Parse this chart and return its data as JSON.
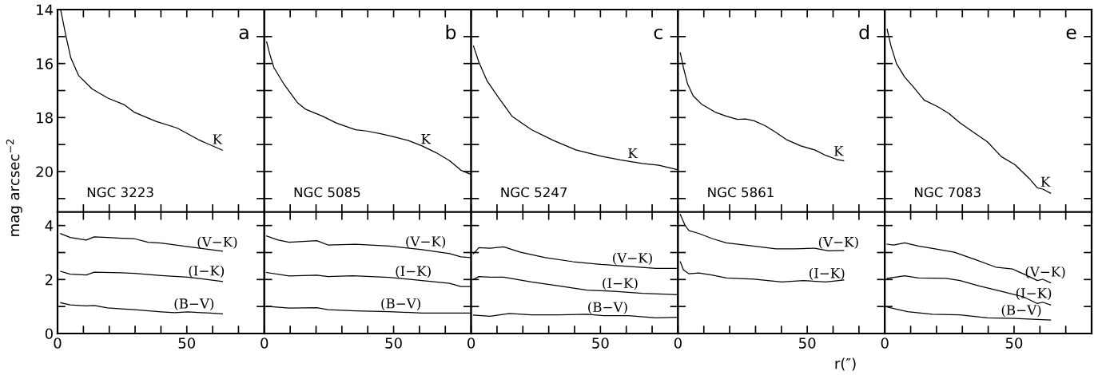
{
  "chart_data": [
    {
      "type": "line",
      "ylabel": "mag arcsec$^{−2}$",
      "xlim": [
        0,
        80
      ],
      "ylim": [
        21.5,
        14
      ],
      "xticks": [
        0,
        {
          "value": 10,
          "label": null
        },
        {
          "value": 20,
          "label": null
        },
        {
          "value": 30,
          "label": null
        },
        {
          "value": 40,
          "label": null
        },
        50,
        {
          "value": 60,
          "label": null
        },
        {
          "value": 70,
          "label": null
        }
      ],
      "yticks": [
        14,
        {
          "value": 15,
          "label": null
        },
        16,
        {
          "value": 17,
          "label": null
        },
        18,
        {
          "value": 19,
          "label": null
        },
        20,
        {
          "value": 21,
          "label": null
        }
      ],
      "tick_labels": "y",
      "grid": false,
      "annotations": [
        "a",
        "NGC 3223"
      ],
      "series": [
        {
          "name": "K",
          "color": "#000000",
          "x": [
            1.2,
            3.1,
            5.1,
            8.2,
            13.4,
            19.5,
            25.7,
            29.8,
            38.1,
            46.3,
            54.5,
            63.8
          ],
          "values": [
            14.0,
            14.91,
            15.78,
            16.45,
            16.94,
            17.28,
            17.52,
            17.81,
            18.14,
            18.39,
            18.82,
            19.21
          ]
        }
      ]
    },
    {
      "type": "line",
      "xlim": [
        0,
        80
      ],
      "ylim": [
        21.5,
        14
      ],
      "xticks": [
        0,
        {
          "value": 10,
          "label": null
        },
        {
          "value": 20,
          "label": null
        },
        {
          "value": 30,
          "label": null
        },
        {
          "value": 40,
          "label": null
        },
        50,
        {
          "value": 60,
          "label": null
        },
        {
          "value": 70,
          "label": null
        }
      ],
      "yticks": [
        14,
        {
          "value": 15,
          "label": null
        },
        16,
        {
          "value": 17,
          "label": null
        },
        18,
        {
          "value": 19,
          "label": null
        },
        20,
        {
          "value": 21,
          "label": null
        }
      ],
      "tick_labels": false,
      "grid": false,
      "annotations": [
        "b",
        "NGC 5085"
      ],
      "series": [
        {
          "name": "K",
          "color": "#000000",
          "x": [
            0.9,
            2.1,
            3.7,
            7.5,
            12.8,
            16.1,
            22.5,
            27.8,
            35.3,
            39.6,
            45.0,
            50.3,
            55.7,
            61.0,
            66.4,
            71.7,
            76.0,
            79.8
          ],
          "values": [
            15.2,
            15.65,
            16.15,
            16.75,
            17.45,
            17.7,
            17.95,
            18.2,
            18.45,
            18.5,
            18.6,
            18.72,
            18.85,
            19.05,
            19.3,
            19.6,
            19.95,
            20.1
          ]
        }
      ]
    },
    {
      "type": "line",
      "xlim": [
        0,
        80
      ],
      "ylim": [
        21.5,
        14
      ],
      "xticks": [
        0,
        {
          "value": 10,
          "label": null
        },
        {
          "value": 20,
          "label": null
        },
        {
          "value": 30,
          "label": null
        },
        {
          "value": 40,
          "label": null
        },
        50,
        {
          "value": 60,
          "label": null
        },
        {
          "value": 70,
          "label": null
        }
      ],
      "yticks": [
        14,
        {
          "value": 15,
          "label": null
        },
        16,
        {
          "value": 17,
          "label": null
        },
        18,
        {
          "value": 19,
          "label": null
        },
        20,
        {
          "value": 21,
          "label": null
        }
      ],
      "tick_labels": false,
      "grid": false,
      "annotations": [
        "c",
        "NGC 5247"
      ],
      "series": [
        {
          "name": "K",
          "color": "#000000",
          "x": [
            0.9,
            3.0,
            6.2,
            10.5,
            15.8,
            23.3,
            31.9,
            40.5,
            50.1,
            57.6,
            66.2,
            72.6,
            79.9
          ],
          "values": [
            15.35,
            15.95,
            16.65,
            17.25,
            17.95,
            18.45,
            18.85,
            19.2,
            19.43,
            19.57,
            19.7,
            19.77,
            19.93
          ]
        }
      ]
    },
    {
      "type": "line",
      "xlim": [
        0,
        80
      ],
      "ylim": [
        21.5,
        14
      ],
      "xticks": [
        0,
        {
          "value": 10,
          "label": null
        },
        {
          "value": 20,
          "label": null
        },
        {
          "value": 30,
          "label": null
        },
        {
          "value": 40,
          "label": null
        },
        50,
        {
          "value": 60,
          "label": null
        },
        {
          "value": 70,
          "label": null
        }
      ],
      "yticks": [
        14,
        {
          "value": 15,
          "label": null
        },
        16,
        {
          "value": 17,
          "label": null
        },
        18,
        {
          "value": 19,
          "label": null
        },
        20,
        {
          "value": 21,
          "label": null
        }
      ],
      "tick_labels": false,
      "grid": false,
      "annotations": [
        "d",
        "NGC 5861"
      ],
      "series": [
        {
          "name": "K",
          "color": "#000000",
          "x": [
            0.9,
            2.1,
            3.7,
            5.9,
            9.1,
            14.4,
            18.7,
            23.0,
            26.2,
            29.4,
            33.7,
            37.9,
            42.2,
            47.5,
            52.9,
            57.1,
            61.4,
            64.1
          ],
          "values": [
            15.6,
            16.15,
            16.75,
            17.2,
            17.5,
            17.8,
            17.95,
            18.07,
            18.05,
            18.12,
            18.3,
            18.55,
            18.83,
            19.05,
            19.2,
            19.4,
            19.55,
            19.6
          ]
        }
      ]
    },
    {
      "type": "line",
      "xlim": [
        0,
        80
      ],
      "ylim": [
        21.5,
        14
      ],
      "xticks": [
        0,
        {
          "value": 10,
          "label": null
        },
        {
          "value": 20,
          "label": null
        },
        {
          "value": 30,
          "label": null
        },
        {
          "value": 40,
          "label": null
        },
        50,
        {
          "value": 60,
          "label": null
        },
        {
          "value": 70,
          "label": null
        }
      ],
      "yticks": [
        14,
        {
          "value": 15,
          "label": null
        },
        16,
        {
          "value": 17,
          "label": null
        },
        18,
        {
          "value": 19,
          "label": null
        },
        20,
        {
          "value": 21,
          "label": null
        }
      ],
      "tick_labels": false,
      "grid": false,
      "annotations": [
        "e",
        "NGC 7083"
      ],
      "series": [
        {
          "name": "K",
          "color": "#000000",
          "x": [
            0.9,
            2.4,
            4.5,
            7.7,
            10.9,
            15.2,
            20.5,
            24.8,
            29.1,
            34.4,
            39.7,
            45.1,
            50.4,
            55.8,
            59.0,
            61.1,
            64.1
          ],
          "values": [
            14.73,
            15.35,
            16.0,
            16.5,
            16.85,
            17.35,
            17.6,
            17.85,
            18.2,
            18.55,
            18.9,
            19.45,
            19.75,
            20.25,
            20.6,
            20.65,
            20.8
          ]
        }
      ]
    },
    {
      "type": "line",
      "xlim": [
        0,
        80
      ],
      "ylim": [
        0,
        4.5
      ],
      "xticks": [
        0,
        {
          "value": 10,
          "label": null
        },
        {
          "value": 20,
          "label": null
        },
        {
          "value": 30,
          "label": null
        },
        {
          "value": 40,
          "label": null
        },
        50,
        {
          "value": 60,
          "label": null
        },
        {
          "value": 70,
          "label": null
        }
      ],
      "yticks": [
        0,
        {
          "value": 1,
          "label": null
        },
        2,
        {
          "value": 3,
          "label": null
        },
        4
      ],
      "grid": false,
      "series": [
        {
          "name": "(V−K)",
          "color": "#000000",
          "x": [
            1.2,
            4.9,
            11.1,
            14.2,
            19.3,
            24.7,
            29.8,
            35,
            40.1,
            50.4,
            63.8
          ],
          "values": [
            3.7,
            3.56,
            3.46,
            3.58,
            3.56,
            3.53,
            3.51,
            3.38,
            3.35,
            3.22,
            3.05
          ]
        },
        {
          "name": "(I−K)",
          "color": "#000000",
          "x": [
            1.2,
            4.9,
            11.1,
            14.2,
            24.7,
            29.8,
            40.1,
            50.4,
            63.8
          ],
          "values": [
            2.3,
            2.2,
            2.17,
            2.27,
            2.25,
            2.23,
            2.15,
            2.09,
            1.93
          ]
        },
        {
          "name": "(B−V)",
          "color": "#000000",
          "x": [
            1.2,
            4.9,
            11.1,
            14.2,
            19.3,
            24.7,
            29.8,
            40.1,
            45.3,
            50.4,
            63.8
          ],
          "values": [
            1.14,
            1.06,
            1.02,
            1.04,
            0.95,
            0.91,
            0.88,
            0.8,
            0.77,
            0.8,
            0.73
          ]
        }
      ]
    },
    {
      "type": "line",
      "xlim": [
        0,
        80
      ],
      "ylim": [
        0,
        4.5
      ],
      "xticks": [
        0,
        {
          "value": 10,
          "label": null
        },
        {
          "value": 20,
          "label": null
        },
        {
          "value": 30,
          "label": null
        },
        {
          "value": 40,
          "label": null
        },
        50,
        {
          "value": 60,
          "label": null
        },
        {
          "value": 70,
          "label": null
        }
      ],
      "yticks": [
        0,
        {
          "value": 1,
          "label": null
        },
        2,
        {
          "value": 3,
          "label": null
        },
        4
      ],
      "tick_labels": "x",
      "grid": false,
      "series": [
        {
          "name": "(V−K)",
          "color": "#000000",
          "x": [
            0.9,
            5.4,
            9.6,
            20.3,
            24.6,
            35.3,
            48.2,
            61.0,
            71.7,
            76.0,
            79.8
          ],
          "values": [
            3.61,
            3.46,
            3.38,
            3.44,
            3.28,
            3.31,
            3.24,
            3.11,
            2.96,
            2.84,
            2.81
          ]
        },
        {
          "name": "(I−K)",
          "color": "#000000",
          "x": [
            0.9,
            9.6,
            20.3,
            24.6,
            34.3,
            48.2,
            61.0,
            71.7,
            76.0,
            79.8
          ],
          "values": [
            2.26,
            2.13,
            2.16,
            2.11,
            2.14,
            2.08,
            1.96,
            1.86,
            1.74,
            1.74
          ]
        },
        {
          "name": "(B−V)",
          "color": "#000000",
          "x": [
            0.9,
            9.6,
            20.3,
            24.6,
            35.3,
            48.2,
            61.0,
            79.8
          ],
          "values": [
            1.01,
            0.94,
            0.96,
            0.88,
            0.84,
            0.81,
            0.76,
            0.76
          ]
        }
      ]
    },
    {
      "type": "line",
      "xlim": [
        0,
        80
      ],
      "ylim": [
        0,
        4.5
      ],
      "xticks": [
        0,
        {
          "value": 10,
          "label": null
        },
        {
          "value": 20,
          "label": null
        },
        {
          "value": 30,
          "label": null
        },
        {
          "value": 40,
          "label": null
        },
        50,
        {
          "value": 60,
          "label": null
        },
        {
          "value": 70,
          "label": null
        }
      ],
      "yticks": [
        0,
        {
          "value": 1,
          "label": null
        },
        2,
        {
          "value": 3,
          "label": null
        },
        4
      ],
      "tick_labels": "x",
      "grid": false,
      "series": [
        {
          "name": "(V−K)",
          "color": "#000000",
          "x": [
            0.9,
            3.0,
            7.3,
            12.6,
            19.1,
            28.7,
            39.4,
            50.1,
            60.8,
            71.5,
            79.9
          ],
          "values": [
            2.96,
            3.18,
            3.16,
            3.21,
            3.01,
            2.81,
            2.66,
            2.56,
            2.49,
            2.41,
            2.41
          ]
        },
        {
          "name": "(I−K)",
          "color": "#000000",
          "x": [
            0.9,
            3.0,
            7.3,
            12.6,
            23.3,
            34.0,
            44.8,
            55.5,
            66.2,
            79.9
          ],
          "values": [
            2.01,
            2.11,
            2.09,
            2.09,
            1.91,
            1.76,
            1.61,
            1.56,
            1.49,
            1.44
          ]
        },
        {
          "name": "(B−V)",
          "color": "#000000",
          "x": [
            0.9,
            7.3,
            14.8,
            23.3,
            34.0,
            44.8,
            51.2,
            60.8,
            71.5,
            79.9
          ],
          "values": [
            0.68,
            0.64,
            0.74,
            0.69,
            0.69,
            0.71,
            0.66,
            0.66,
            0.58,
            0.6
          ]
        }
      ]
    },
    {
      "type": "line",
      "xlabel": "r(″)",
      "xlim": [
        0,
        80
      ],
      "ylim": [
        0,
        4.5
      ],
      "xticks": [
        0,
        {
          "value": 10,
          "label": null
        },
        {
          "value": 20,
          "label": null
        },
        {
          "value": 30,
          "label": null
        },
        {
          "value": 40,
          "label": null
        },
        50,
        {
          "value": 60,
          "label": null
        },
        {
          "value": 70,
          "label": null
        }
      ],
      "yticks": [
        0,
        {
          "value": 1,
          "label": null
        },
        2,
        {
          "value": 3,
          "label": null
        },
        4
      ],
      "tick_labels": "x",
      "grid": false,
      "series": [
        {
          "name": "(V−K)",
          "color": "#000000",
          "x": [
            0.9,
            2.7,
            4.3,
            8.0,
            13.4,
            18.7,
            27.2,
            37.9,
            45.4,
            52.9,
            58.2,
            64.1
          ],
          "values": [
            4.41,
            4.01,
            3.81,
            3.71,
            3.51,
            3.36,
            3.26,
            3.14,
            3.14,
            3.16,
            3.06,
            3.08
          ]
        },
        {
          "name": "(I−K)",
          "color": "#000000",
          "x": [
            0.9,
            2.1,
            4.3,
            8.0,
            13.4,
            18.7,
            29.4,
            40.1,
            48.6,
            57.2,
            64.1
          ],
          "values": [
            2.66,
            2.36,
            2.21,
            2.24,
            2.16,
            2.06,
            2.01,
            1.91,
            1.96,
            1.91,
            1.98
          ]
        }
      ]
    },
    {
      "type": "line",
      "xlim": [
        0,
        80
      ],
      "ylim": [
        0,
        4.5
      ],
      "xticks": [
        0,
        {
          "value": 10,
          "label": null
        },
        {
          "value": 20,
          "label": null
        },
        {
          "value": 30,
          "label": null
        },
        {
          "value": 40,
          "label": null
        },
        50,
        {
          "value": 60,
          "label": null
        },
        {
          "value": 70,
          "label": null
        }
      ],
      "yticks": [
        0,
        {
          "value": 1,
          "label": null
        },
        2,
        {
          "value": 3,
          "label": null
        },
        4
      ],
      "tick_labels": "x",
      "grid": false,
      "series": [
        {
          "name": "(V−K)",
          "color": "#000000",
          "x": [
            0.9,
            3.4,
            7.7,
            13.0,
            19.4,
            26.9,
            34.4,
            42.9,
            49.4,
            54.7,
            59.0,
            61.1,
            64.1
          ],
          "values": [
            3.31,
            3.28,
            3.36,
            3.24,
            3.14,
            3.01,
            2.76,
            2.46,
            2.39,
            2.16,
            1.96,
            2.01,
            1.88
          ]
        },
        {
          "name": "(I−K)",
          "color": "#000000",
          "x": [
            0.9,
            7.7,
            13.0,
            23.7,
            29.1,
            36.5,
            45.1,
            53.6,
            59.0,
            61.1,
            64.1
          ],
          "values": [
            2.04,
            2.14,
            2.06,
            2.04,
            1.96,
            1.76,
            1.56,
            1.36,
            1.11,
            1.16,
            1.06
          ]
        },
        {
          "name": "(B−V)",
          "color": "#000000",
          "x": [
            0.9,
            8.8,
            18.4,
            29.1,
            39.7,
            50.4,
            64.1
          ],
          "values": [
            0.98,
            0.81,
            0.71,
            0.69,
            0.58,
            0.56,
            0.5
          ]
        }
      ]
    }
  ]
}
